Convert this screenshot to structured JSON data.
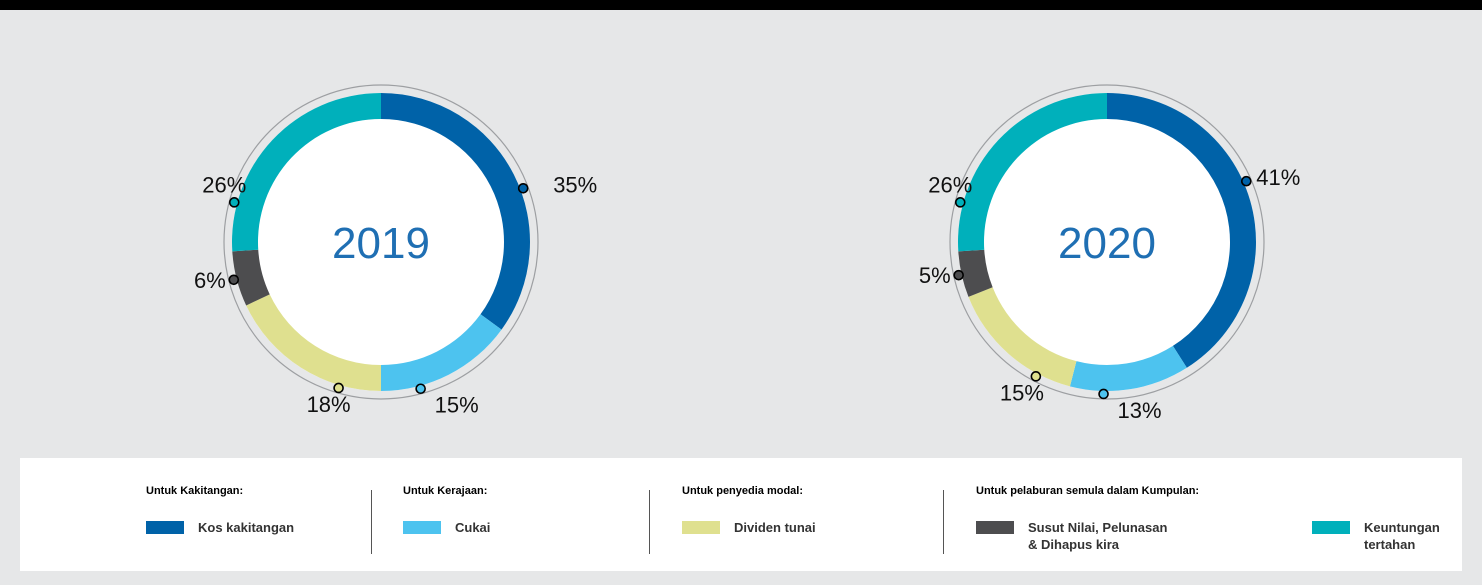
{
  "chart_data": [
    {
      "type": "pie",
      "center_label": "2019",
      "categories": [
        "Kos kakitangan",
        "Cukai",
        "Dividen tunai",
        "Susut Nilai, Pelunasan & Dihapus kira",
        "Keuntungan tertahan"
      ],
      "values": [
        35,
        15,
        18,
        6,
        26
      ],
      "labels": [
        "35%",
        "15%",
        "18%",
        "6%",
        "26%"
      ]
    },
    {
      "type": "pie",
      "center_label": "2020",
      "categories": [
        "Kos kakitangan",
        "Cukai",
        "Dividen tunai",
        "Susut Nilai, Pelunasan & Dihapus kira",
        "Keuntungan tertahan"
      ],
      "values": [
        41,
        13,
        15,
        5,
        26
      ],
      "labels": [
        "41%",
        "13%",
        "15%",
        "5%",
        "26%"
      ]
    }
  ],
  "colors": {
    "Kos kakitangan": "#0062a8",
    "Cukai": "#4dc3ef",
    "Dividen tunai": "#dfe08f",
    "Susut Nilai, Pelunasan & Dihapus kira": "#4d4d4f",
    "Keuntungan tertahan": "#00b0bb",
    "year_text": "#1f6fb3"
  },
  "legend": {
    "groups": [
      {
        "heading": "Untuk Kakitangan:",
        "items": [
          {
            "label": "Kos kakitangan",
            "color": "#0062a8"
          }
        ]
      },
      {
        "heading": "Untuk Kerajaan:",
        "items": [
          {
            "label": "Cukai",
            "color": "#4dc3ef"
          }
        ]
      },
      {
        "heading": "Untuk penyedia modal:",
        "items": [
          {
            "label": "Dividen tunai",
            "color": "#dfe08f"
          }
        ]
      },
      {
        "heading": "Untuk pelaburan semula dalam Kumpulan:",
        "items": [
          {
            "label": "Susut Nilai, Pelunasan\n& Dihapus kira",
            "color": "#4d4d4f"
          },
          {
            "label": "Keuntungan\ntertahan",
            "color": "#00b0bb"
          }
        ]
      }
    ]
  }
}
